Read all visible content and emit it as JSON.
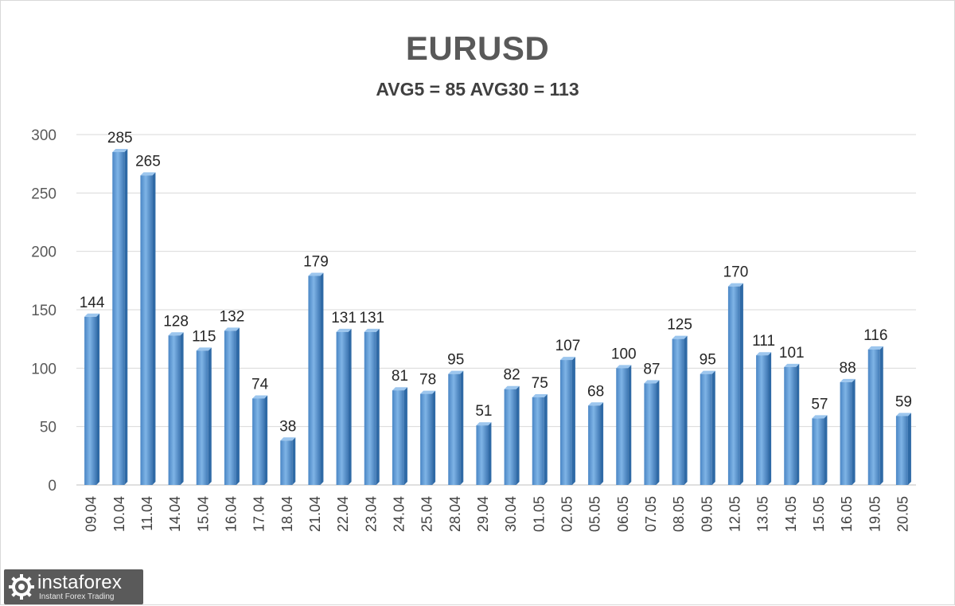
{
  "chart_data": {
    "type": "bar",
    "title": "EURUSD",
    "subtitle": "AVG5 = 85 AVG30 = 113",
    "categories": [
      "09.04",
      "10.04",
      "11.04",
      "14.04",
      "15.04",
      "16.04",
      "17.04",
      "18.04",
      "21.04",
      "22.04",
      "23.04",
      "24.04",
      "25.04",
      "28.04",
      "29.04",
      "30.04",
      "01.05",
      "02.05",
      "05.05",
      "06.05",
      "07.05",
      "08.05",
      "09.05",
      "12.05",
      "13.05",
      "14.05",
      "15.05",
      "16.05",
      "19.05",
      "20.05"
    ],
    "values": [
      144,
      285,
      265,
      128,
      115,
      132,
      74,
      38,
      179,
      131,
      131,
      81,
      78,
      95,
      51,
      82,
      75,
      107,
      68,
      100,
      87,
      125,
      95,
      170,
      111,
      101,
      57,
      88,
      116,
      59
    ],
    "ylim": [
      0,
      300
    ],
    "yticks": [
      0,
      50,
      100,
      150,
      200,
      250,
      300
    ],
    "grid": true,
    "legend": "none",
    "bar_color": "#5b9bd5"
  },
  "watermark": {
    "name": "instaforex",
    "tagline": "Instant Forex Trading"
  }
}
